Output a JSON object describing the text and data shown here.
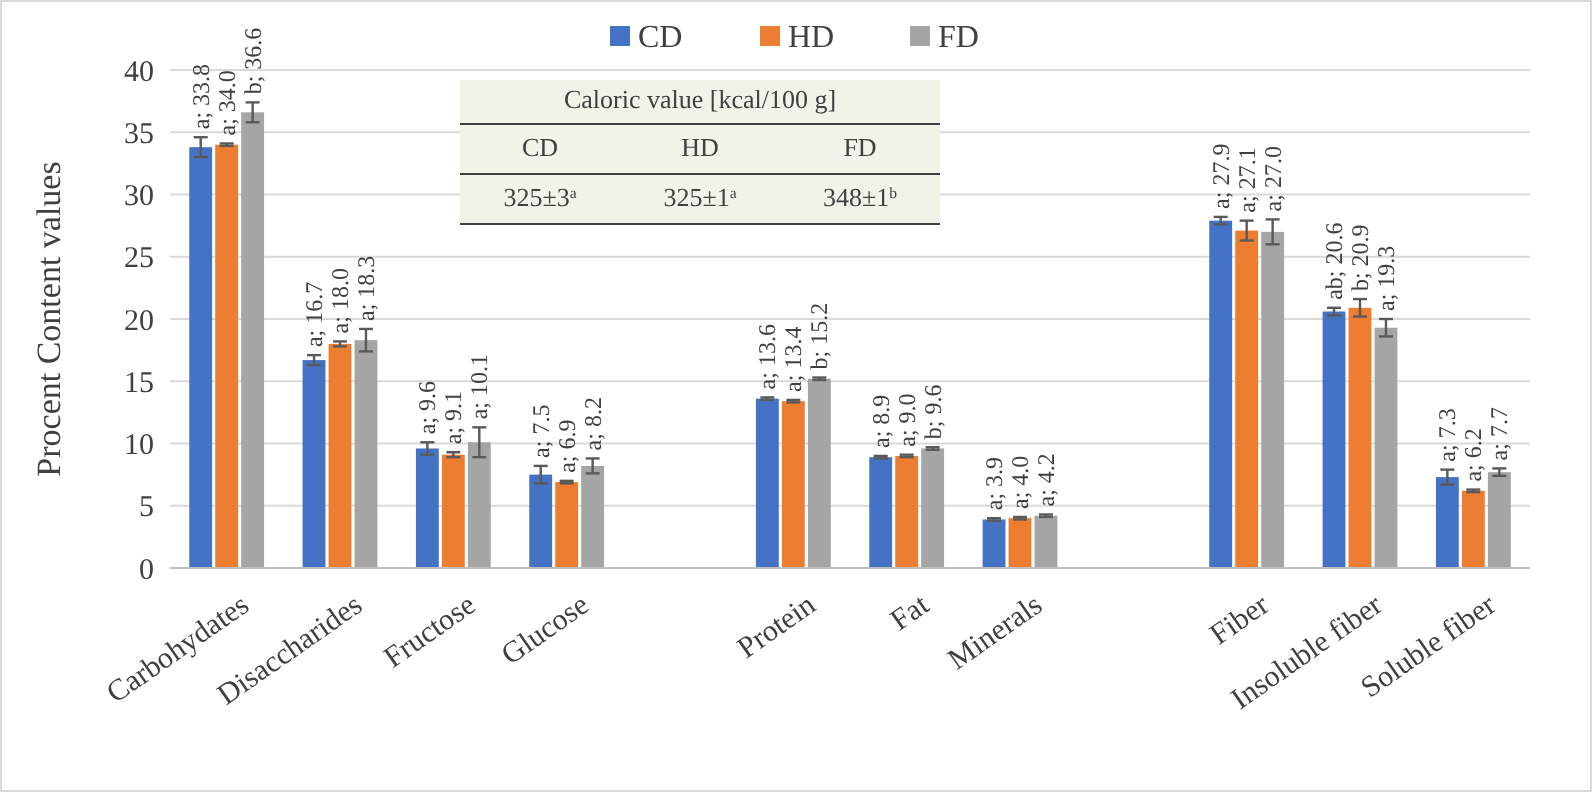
{
  "chart_data": {
    "type": "bar",
    "ylabel": "Procent Content values",
    "categories": [
      "Carbohydates",
      "Disaccharides",
      "Fructose",
      "Glucose",
      null,
      "Protein",
      "Fat",
      "Minerals",
      null,
      "Fiber",
      "Insoluble fiber",
      "Soluble fiber"
    ],
    "series": [
      {
        "name": "CD",
        "color": "#4472c4",
        "values": [
          33.8,
          16.7,
          9.6,
          7.5,
          null,
          13.6,
          8.9,
          3.9,
          null,
          27.9,
          20.6,
          7.3
        ],
        "errors": [
          0.8,
          0.4,
          0.5,
          0.7,
          null,
          0.1,
          0.1,
          0.1,
          null,
          0.3,
          0.3,
          0.6
        ],
        "value_labels": [
          "a; 33.8",
          "a; 16.7",
          "a; 9.6",
          "a; 7.5",
          null,
          "a; 13.6",
          "a; 8.9",
          "a; 3.9",
          null,
          "a; 27.9",
          "ab; 20.6",
          "a; 7.3"
        ]
      },
      {
        "name": "HD",
        "color": "#ed7d31",
        "values": [
          34.0,
          18.0,
          9.1,
          6.9,
          null,
          13.4,
          9.0,
          4.0,
          null,
          27.1,
          20.9,
          6.2
        ],
        "errors": [
          0.1,
          0.2,
          0.2,
          0.1,
          null,
          0.1,
          0.1,
          0.1,
          null,
          0.8,
          0.7,
          0.1
        ],
        "value_labels": [
          "a; 34.0",
          "a; 18.0",
          "a; 9.1",
          "a; 6.9",
          null,
          "a; 13.4",
          "a; 9.0",
          "a; 4.0",
          null,
          "a; 27.1",
          "b; 20.9",
          "a; 6.2"
        ]
      },
      {
        "name": "FD",
        "color": "#a5a5a5",
        "values": [
          36.6,
          18.3,
          10.1,
          8.2,
          null,
          15.2,
          9.6,
          4.2,
          null,
          27.0,
          19.3,
          7.7
        ],
        "errors": [
          0.8,
          0.9,
          1.2,
          0.6,
          null,
          0.1,
          0.1,
          0.1,
          null,
          1.0,
          0.7,
          0.3
        ],
        "value_labels": [
          "b; 36.6",
          "a; 18.3",
          "a; 10.1",
          "a; 8.2",
          null,
          "b; 15.2",
          "b; 9.6",
          "a; 4.2",
          null,
          "a; 27.0",
          "a; 19.3",
          "a; 7.7"
        ]
      }
    ],
    "ylim": [
      0,
      40
    ],
    "yticks": [
      0,
      5,
      10,
      15,
      20,
      25,
      30,
      35,
      40
    ],
    "grid": "y",
    "legend": "top",
    "annotations": [
      "Caloric value [kcal/100 g]",
      "CD",
      "HD",
      "FD",
      "325±3$^{a}$",
      "325±1$^{a}$",
      "348±1$^{b}$"
    ]
  }
}
